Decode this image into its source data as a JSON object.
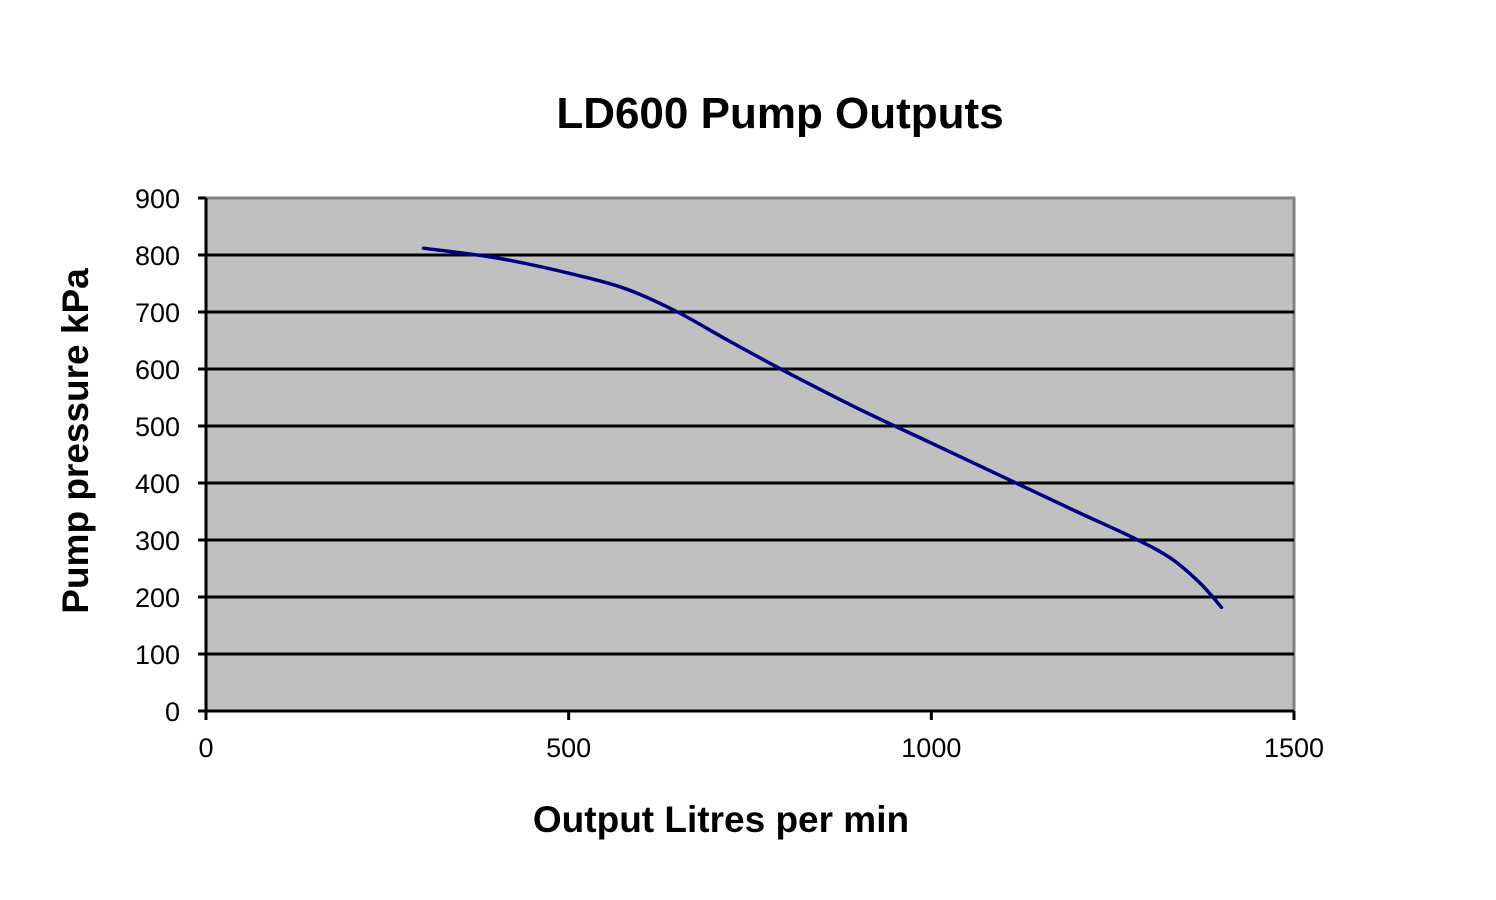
{
  "chart_data": {
    "type": "line",
    "title": "LD600 Pump Outputs",
    "xlabel": "Output Litres per min",
    "ylabel": "Pump pressure kPa",
    "xlim": [
      0,
      1500
    ],
    "ylim": [
      0,
      900
    ],
    "x_ticks": [
      "0",
      "500",
      "1000",
      "1500"
    ],
    "y_ticks": [
      "0",
      "100",
      "200",
      "300",
      "400",
      "500",
      "600",
      "700",
      "800",
      "900"
    ],
    "grid": "horizontal",
    "legend": "none",
    "plot_background": "#c0c0c0",
    "series": [
      {
        "color": "#000080",
        "x": [
          300,
          400,
          500,
          580,
          650,
          720,
          800,
          900,
          1000,
          1100,
          1200,
          1280,
          1330,
          1370,
          1400
        ],
        "y": [
          812,
          795,
          768,
          740,
          700,
          650,
          595,
          530,
          470,
          410,
          350,
          303,
          268,
          225,
          182
        ]
      }
    ]
  }
}
